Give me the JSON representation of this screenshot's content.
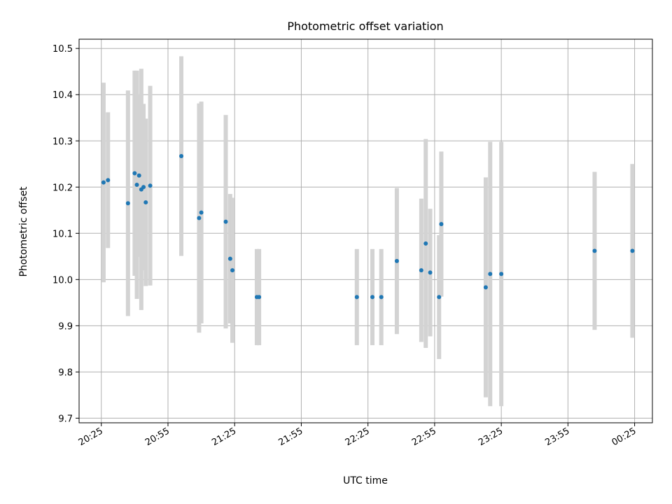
{
  "chart_data": {
    "type": "scatter",
    "title": "Photometric offset variation",
    "xlabel": "UTC time",
    "ylabel": "Photometric offset",
    "x_ticks": [
      "20:25",
      "20:55",
      "21:25",
      "21:55",
      "22:25",
      "22:55",
      "23:25",
      "23:55",
      "00:25"
    ],
    "y_ticks": [
      "9.7",
      "9.8",
      "9.9",
      "10.0",
      "10.1",
      "10.2",
      "10.3",
      "10.4",
      "10.5"
    ],
    "xlim": [
      "20:15",
      "00:33"
    ],
    "ylim": [
      9.69,
      10.52
    ],
    "grid": true,
    "colors": {
      "marker": "#1f77b4",
      "errorbar": "#d3d3d3",
      "grid": "#b0b0b0"
    },
    "series": [
      {
        "points": [
          {
            "x": "20:26",
            "y": 10.21,
            "err": 0.216
          },
          {
            "x": "20:28",
            "y": 10.215,
            "err": 0.147
          },
          {
            "x": "20:37",
            "y": 10.165,
            "err": 0.244
          },
          {
            "x": "20:40",
            "y": 10.23,
            "err": 0.222
          },
          {
            "x": "20:41",
            "y": 10.205,
            "err": 0.247
          },
          {
            "x": "20:42",
            "y": 10.225,
            "err": 0.176
          },
          {
            "x": "20:43",
            "y": 10.195,
            "err": 0.261
          },
          {
            "x": "20:44",
            "y": 10.2,
            "err": 0.18
          },
          {
            "x": "20:45",
            "y": 10.167,
            "err": 0.181
          },
          {
            "x": "20:47",
            "y": 10.203,
            "err": 0.216
          },
          {
            "x": "21:01",
            "y": 10.267,
            "err": 0.216
          },
          {
            "x": "21:09",
            "y": 10.133,
            "err": 0.248
          },
          {
            "x": "21:10",
            "y": 10.145,
            "err": 0.24
          },
          {
            "x": "21:21",
            "y": 10.125,
            "err": 0.231
          },
          {
            "x": "21:23",
            "y": 10.045,
            "err": 0.14
          },
          {
            "x": "21:24",
            "y": 10.02,
            "err": 0.157
          },
          {
            "x": "21:35",
            "y": 9.962,
            "err": 0.104
          },
          {
            "x": "21:36",
            "y": 9.962,
            "err": 0.104
          },
          {
            "x": "22:20",
            "y": 9.962,
            "err": 0.104
          },
          {
            "x": "22:27",
            "y": 9.962,
            "err": 0.104
          },
          {
            "x": "22:31",
            "y": 9.962,
            "err": 0.104
          },
          {
            "x": "22:38",
            "y": 10.04,
            "err": 0.158
          },
          {
            "x": "22:49",
            "y": 10.02,
            "err": 0.155
          },
          {
            "x": "22:51",
            "y": 10.078,
            "err": 0.226
          },
          {
            "x": "22:53",
            "y": 10.015,
            "err": 0.138
          },
          {
            "x": "22:57",
            "y": 9.962,
            "err": 0.134
          },
          {
            "x": "22:58",
            "y": 10.12,
            "err": 0.157
          },
          {
            "x": "23:18",
            "y": 9.983,
            "err": 0.238
          },
          {
            "x": "23:20",
            "y": 10.012,
            "err": 0.286
          },
          {
            "x": "23:25",
            "y": 10.012,
            "err": 0.286
          },
          {
            "x": "24:07",
            "y": 10.062,
            "err": 0.171
          },
          {
            "x": "24:24",
            "y": 10.062,
            "err": 0.188
          }
        ]
      }
    ]
  }
}
